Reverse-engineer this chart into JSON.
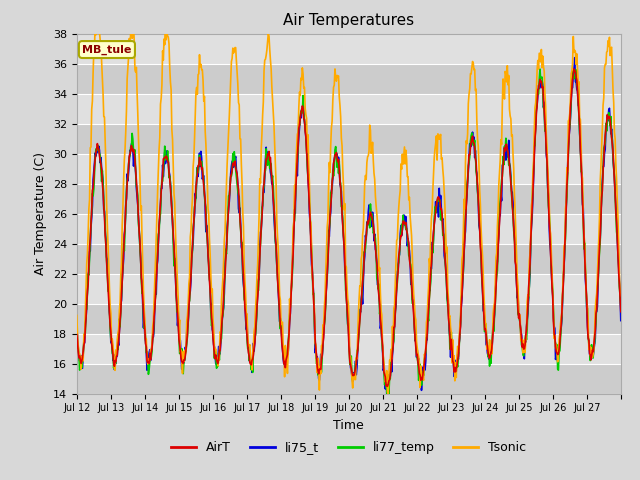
{
  "title": "Air Temperatures",
  "xlabel": "Time",
  "ylabel": "Air Temperature (C)",
  "ylim": [
    14,
    38
  ],
  "yticks": [
    14,
    16,
    18,
    20,
    22,
    24,
    26,
    28,
    30,
    32,
    34,
    36,
    38
  ],
  "site_label": "MB_tule",
  "bg_color": "#d8d8d8",
  "plot_bg_color": "#d8d8d8",
  "band_colors": [
    "#cccccc",
    "#e0e0e0"
  ],
  "grid_color": "#ffffff",
  "legend_entries": [
    "AirT",
    "li75_t",
    "li77_temp",
    "Tsonic"
  ],
  "line_colors": {
    "AirT": "#dd0000",
    "li75_t": "#0000dd",
    "li77_temp": "#00cc00",
    "Tsonic": "#ffaa00"
  },
  "xtick_labels": [
    "Jul 12",
    "Jul 13",
    "Jul 14",
    "Jul 15",
    "Jul 16",
    "Jul 17",
    "Jul 18",
    "Jul 19",
    "Jul 20",
    "Jul 21",
    "Jul 22",
    "Jul 23",
    "Jul 24",
    "Jul 25",
    "Jul 26",
    "Jul 27"
  ],
  "n_points_per_day": 48,
  "n_days": 16,
  "day_min_base": [
    16.0,
    16.0,
    16.0,
    16.0,
    16.0,
    16.0,
    16.0,
    15.5,
    15.2,
    14.5,
    15.0,
    15.5,
    16.5,
    17.0,
    16.5,
    16.5
  ],
  "day_max_base": [
    30.5,
    30.5,
    30.0,
    29.5,
    29.5,
    30.0,
    33.0,
    30.0,
    26.0,
    25.5,
    27.0,
    31.0,
    30.5,
    35.0,
    35.5,
    32.5
  ],
  "tsonic_peak_extra": [
    8.5,
    8.0,
    8.0,
    6.5,
    7.5,
    7.5,
    2.0,
    5.5,
    5.0,
    4.5,
    4.5,
    5.0,
    5.0,
    2.0,
    1.5,
    5.0
  ],
  "figsize": [
    6.4,
    4.8
  ],
  "dpi": 100
}
